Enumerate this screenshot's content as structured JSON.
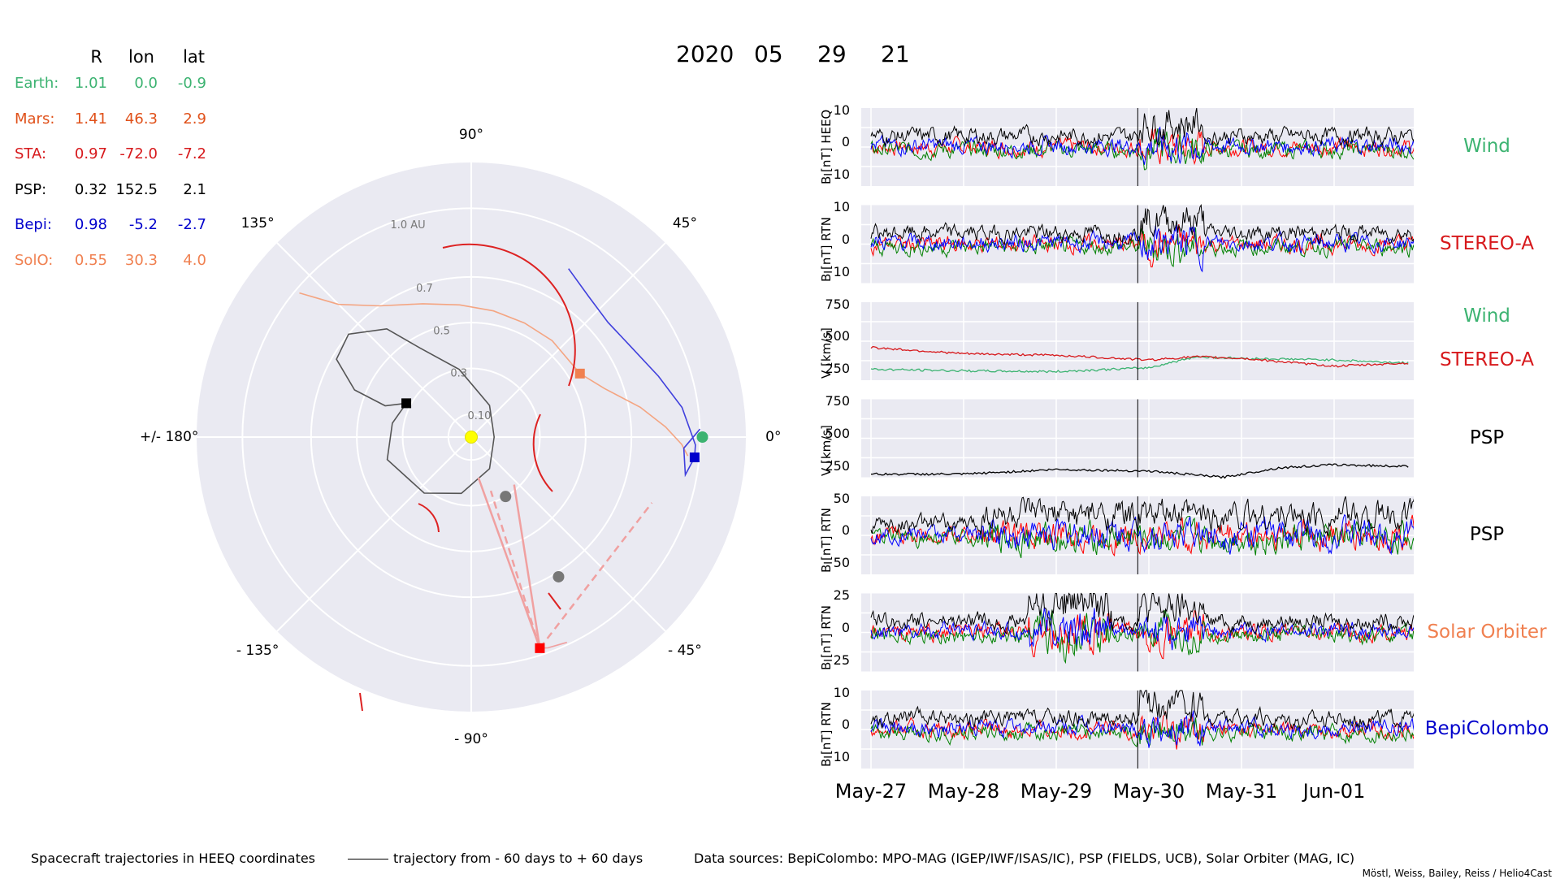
{
  "header": {
    "year": "2020",
    "month": "05",
    "day": "29",
    "hour": "21"
  },
  "positions_table": {
    "headers": [
      "R",
      "lon",
      "lat"
    ],
    "rows": [
      {
        "name": "Earth:",
        "R": "1.01",
        "lon": "0.0",
        "lat": "-0.9",
        "color": "#3cb371"
      },
      {
        "name": "Mars:",
        "R": "1.41",
        "lon": "46.3",
        "lat": "2.9",
        "color": "#e0511a"
      },
      {
        "name": "STA:",
        "R": "0.97",
        "lon": "-72.0",
        "lat": "-7.2",
        "color": "#d7191c"
      },
      {
        "name": "PSP:",
        "R": "0.32",
        "lon": "152.5",
        "lat": "2.1",
        "color": "#000000"
      },
      {
        "name": "Bepi:",
        "R": "0.98",
        "lon": "-5.2",
        "lat": "-2.7",
        "color": "#0000cc"
      },
      {
        "name": "SolO:",
        "R": "0.55",
        "lon": "30.3",
        "lat": "4.0",
        "color": "#f08050"
      }
    ]
  },
  "polar_plot": {
    "angle_labels": [
      "90°",
      "45°",
      "0°",
      "- 45°",
      "- 90°",
      "- 135°",
      "+/- 180°",
      "135°"
    ],
    "radial_labels": [
      "1.0 AU",
      "0.7",
      "0.5",
      "0.3",
      "0.10"
    ],
    "radial_values": [
      1.0,
      0.7,
      0.5,
      0.3,
      0.1
    ],
    "r_max": 1.2
  },
  "timeseries": {
    "x_ticks": [
      "May-27",
      "May-28",
      "May-29",
      "May-30",
      "May-31",
      "Jun-01"
    ],
    "panels": [
      {
        "ylabel": "B [nT] HEEQ",
        "yticks": [
          "10",
          "0",
          "−10"
        ],
        "labels": [
          {
            "text": "Wind",
            "color": "#3cb371"
          }
        ]
      },
      {
        "ylabel": "B [nT] RTN",
        "yticks": [
          "10",
          "0",
          "−10"
        ],
        "labels": [
          {
            "text": "STEREO-A",
            "color": "#d7191c"
          }
        ]
      },
      {
        "ylabel": "V [km/s]",
        "yticks": [
          "750",
          "500",
          "250"
        ],
        "labels": [
          {
            "text": "Wind",
            "color": "#3cb371"
          },
          {
            "text": "STEREO-A",
            "color": "#d7191c"
          }
        ]
      },
      {
        "ylabel": "V [km/s]",
        "yticks": [
          "750",
          "500",
          "250"
        ],
        "labels": [
          {
            "text": "PSP",
            "color": "#000000"
          }
        ]
      },
      {
        "ylabel": "B [nT] RTN",
        "yticks": [
          "50",
          "0",
          "−50"
        ],
        "labels": [
          {
            "text": "PSP",
            "color": "#000000"
          }
        ]
      },
      {
        "ylabel": "B [nT] RTN",
        "yticks": [
          "25",
          "0",
          "−25"
        ],
        "labels": [
          {
            "text": "Solar Orbiter",
            "color": "#f08050"
          }
        ]
      },
      {
        "ylabel": "B [nT] RTN",
        "yticks": [
          "10",
          "0",
          "−10"
        ],
        "labels": [
          {
            "text": "BepiColombo",
            "color": "#0000cc"
          }
        ]
      }
    ]
  },
  "footer": {
    "left": "Spacecraft trajectories in HEEQ coordinates",
    "legend": "trajectory from - 60 days to + 60 days",
    "sources": "Data sources: BepiColombo: MPO-MAG (IGEP/IWF/ISAS/IC), PSP (FIELDS, UCB), Solar Orbiter (MAG, IC)",
    "credit": "Möstl, Weiss, Bailey, Reiss / Helio4Cast"
  },
  "chart_data": [
    {
      "type": "scatter",
      "subtype": "polar",
      "title": "",
      "radial_range": [
        0,
        1.2
      ],
      "grid": true,
      "points": [
        {
          "name": "Sun",
          "r": 0.0,
          "lon": 0,
          "color": "#ffff00",
          "marker": "circle"
        },
        {
          "name": "Earth",
          "r": 1.01,
          "lon": 0.0,
          "color": "#3cb371",
          "marker": "circle"
        },
        {
          "name": "Mars",
          "r": 1.41,
          "lon": 46.3,
          "color": "#e0511a",
          "marker": "circle"
        },
        {
          "name": "STA",
          "r": 0.97,
          "lon": -72.0,
          "color": "#ff0000",
          "marker": "square"
        },
        {
          "name": "PSP",
          "r": 0.32,
          "lon": 152.5,
          "color": "#000000",
          "marker": "square"
        },
        {
          "name": "Bepi",
          "r": 0.98,
          "lon": -5.2,
          "color": "#0000cc",
          "marker": "square"
        },
        {
          "name": "SolO",
          "r": 0.55,
          "lon": 30.3,
          "color": "#f08050",
          "marker": "square"
        },
        {
          "name": "Venus",
          "r": 0.72,
          "lon": -58,
          "color": "#777777",
          "marker": "circle"
        },
        {
          "name": "Mercury",
          "r": 0.3,
          "lon": -60,
          "color": "#777777",
          "marker": "circle"
        }
      ],
      "trajectories": [
        {
          "name": "PSP",
          "color": "#555555",
          "points": [
            [
              0.32,
              152.5
            ],
            [
              0.4,
              160
            ],
            [
              0.55,
              158
            ],
            [
              0.68,
              150
            ],
            [
              0.7,
              140
            ],
            [
              0.6,
              128
            ],
            [
              0.45,
              120
            ],
            [
              0.3,
              100
            ],
            [
              0.16,
              60
            ],
            [
              0.1,
              0
            ],
            [
              0.16,
              -60
            ],
            [
              0.25,
              -100
            ],
            [
              0.32,
              -130
            ],
            [
              0.38,
              -165
            ],
            [
              0.35,
              170
            ],
            [
              0.32,
              152.5
            ]
          ]
        },
        {
          "name": "SolO",
          "color": "#f4a582",
          "points": [
            [
              0.98,
              140
            ],
            [
              0.82,
              135
            ],
            [
              0.7,
              125
            ],
            [
              0.62,
              110
            ],
            [
              0.58,
              95
            ],
            [
              0.56,
              80
            ],
            [
              0.55,
              65
            ],
            [
              0.55,
              50
            ],
            [
              0.55,
              30.3
            ],
            [
              0.62,
              20
            ],
            [
              0.75,
              10
            ],
            [
              0.85,
              3
            ],
            [
              0.92,
              -2
            ],
            [
              0.95,
              -5
            ]
          ]
        },
        {
          "name": "Bepi",
          "color": "#4040dd",
          "points": [
            [
              0.85,
              60
            ],
            [
              0.8,
              50
            ],
            [
              0.78,
              40
            ],
            [
              0.8,
              30
            ],
            [
              0.86,
              18
            ],
            [
              0.93,
              8
            ],
            [
              0.98,
              -2
            ],
            [
              0.98,
              -5.2
            ],
            [
              0.95,
              -10
            ],
            [
              0.93,
              -3
            ],
            [
              1.0,
              2
            ]
          ]
        },
        {
          "name": "STA",
          "color": "#f0a0a0",
          "points": [
            [
              0.97,
              -72
            ],
            [
              0.98,
              -70
            ],
            [
              0.99,
              -65
            ]
          ]
        }
      ]
    },
    {
      "type": "line",
      "title": "",
      "panels": [
        {
          "instrument": "Wind",
          "ylabel": "B [nT] HEEQ",
          "ylim": [
            -15,
            15
          ],
          "series": [
            "Bx",
            "By",
            "Bz",
            "Btot"
          ]
        },
        {
          "instrument": "STEREO-A",
          "ylabel": "B [nT] RTN",
          "ylim": [
            -15,
            15
          ],
          "series": [
            "Br",
            "Bt",
            "Bn",
            "Btot"
          ]
        },
        {
          "instrument": "Wind / STEREO-A",
          "ylabel": "V [km/s]",
          "ylim": [
            250,
            750
          ],
          "series": [
            {
              "name": "Wind",
              "color": "#3cb371",
              "values": [
                [
                  0,
                  320
                ],
                [
                  1,
                  310
                ],
                [
                  2,
                  305
                ],
                [
                  3,
                  330
                ],
                [
                  3.5,
                  400
                ],
                [
                  4,
                  390
                ],
                [
                  5,
                  380
                ],
                [
                  5.8,
                  360
                ]
              ]
            },
            {
              "name": "STEREO-A",
              "color": "#d7191c",
              "values": [
                [
                  0,
                  460
                ],
                [
                  1,
                  420
                ],
                [
                  2,
                  410
                ],
                [
                  3,
                  380
                ],
                [
                  3.5,
                  400
                ],
                [
                  4,
                  390
                ],
                [
                  5,
                  340
                ],
                [
                  5.8,
                  360
                ]
              ]
            }
          ]
        },
        {
          "instrument": "PSP",
          "ylabel": "V [km/s]",
          "ylim": [
            250,
            750
          ],
          "series": [
            {
              "name": "PSP",
              "color": "#000000",
              "values": [
                [
                  0,
                  270
                ],
                [
                  1,
                  270
                ],
                [
                  2,
                  300
                ],
                [
                  3,
                  290
                ],
                [
                  3.8,
                  250
                ],
                [
                  4.4,
                  310
                ],
                [
                  5,
                  330
                ],
                [
                  5.8,
                  320
                ]
              ]
            }
          ]
        },
        {
          "instrument": "PSP",
          "ylabel": "B [nT] RTN",
          "ylim": [
            -60,
            60
          ],
          "series": [
            "Br",
            "Bt",
            "Bn",
            "Btot"
          ]
        },
        {
          "instrument": "Solar Orbiter",
          "ylabel": "B [nT] RTN",
          "ylim": [
            -30,
            30
          ],
          "series": [
            "Br",
            "Bt",
            "Bn",
            "Btot"
          ]
        },
        {
          "instrument": "BepiColombo",
          "ylabel": "B [nT] RTN",
          "ylim": [
            -15,
            15
          ],
          "series": [
            "Br",
            "Bt",
            "Bn",
            "Btot"
          ]
        }
      ],
      "x": [
        "May-27",
        "May-28",
        "May-29",
        "May-30",
        "May-31",
        "Jun-01"
      ],
      "current_time": "2020-05-29 21:00"
    }
  ]
}
